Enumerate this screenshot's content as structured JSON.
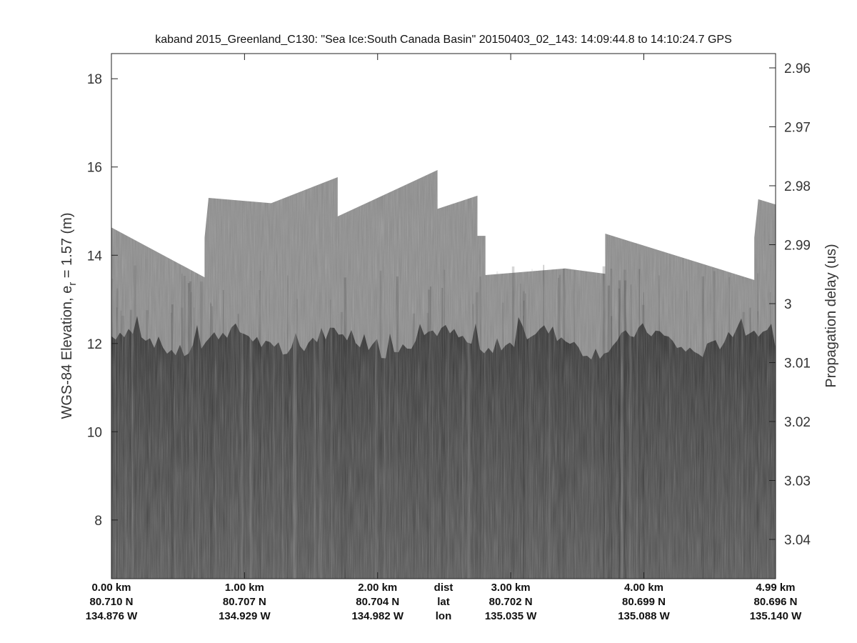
{
  "chart_data": {
    "type": "heatmap",
    "title": "kaband 2015_Greenland_C130: \"Sea Ice:South Canada Basin\"  20150403_02_143: 14:09:44.8 to 14:10:24.7 GPS",
    "ylabel_left": "WGS-84 Elevation, e",
    "ylabel_left_sub": "r",
    "ylabel_left_suffix": " = 1.57 (m)",
    "ylabel_right": "Propagation delay (us)",
    "ylim": [
      6.67,
      18.57
    ],
    "y_ticks_left": [
      "8",
      "10",
      "12",
      "14",
      "16",
      "18"
    ],
    "y_ticks_right": [
      "2.96",
      "2.97",
      "2.98",
      "2.99",
      "3",
      "3.01",
      "3.02",
      "3.03",
      "3.04"
    ],
    "xlim_km": [
      0,
      4.99
    ],
    "x_row_labels": [
      "dist",
      "lat",
      "lon"
    ],
    "x_ticks": [
      {
        "dist": "0.00 km",
        "lat": "80.710 N",
        "lon": "134.876 W",
        "km": 0
      },
      {
        "dist": "1.00 km",
        "lat": "80.707 N",
        "lon": "134.929 W",
        "km": 1
      },
      {
        "dist": "2.00 km",
        "lat": "80.704 N",
        "lon": "134.982 W",
        "km": 2
      },
      {
        "dist": "3.00 km",
        "lat": "80.702 N",
        "lon": "135.035 W",
        "km": 3
      },
      {
        "dist": "4.00 km",
        "lat": "80.699 N",
        "lon": "135.088 W",
        "km": 4
      },
      {
        "dist": "4.99 km",
        "lat": "80.696 N",
        "lon": "135.140 W",
        "km": 4.99
      }
    ],
    "surface_profile_km_elev": [
      [
        0,
        14.63
      ],
      [
        0.7,
        13.5
      ],
      [
        0.7,
        14.4
      ],
      [
        0.73,
        15.3
      ],
      [
        1.2,
        15.18
      ],
      [
        1.7,
        15.77
      ],
      [
        1.7,
        14.88
      ],
      [
        2.45,
        15.93
      ],
      [
        2.45,
        15.05
      ],
      [
        2.75,
        15.35
      ],
      [
        2.75,
        14.44
      ],
      [
        2.81,
        14.44
      ],
      [
        2.81,
        13.55
      ],
      [
        3.41,
        13.7
      ],
      [
        3.71,
        13.58
      ],
      [
        3.71,
        14.49
      ],
      [
        4.83,
        13.44
      ],
      [
        4.83,
        14.4
      ],
      [
        4.86,
        15.27
      ],
      [
        4.99,
        15.15
      ]
    ],
    "interface_elevation_approx": 12,
    "colormap": "gray",
    "colors": {
      "upper_layer": "#8c8c8c",
      "lower_layer": "#474747",
      "background": "#ffffff"
    }
  }
}
